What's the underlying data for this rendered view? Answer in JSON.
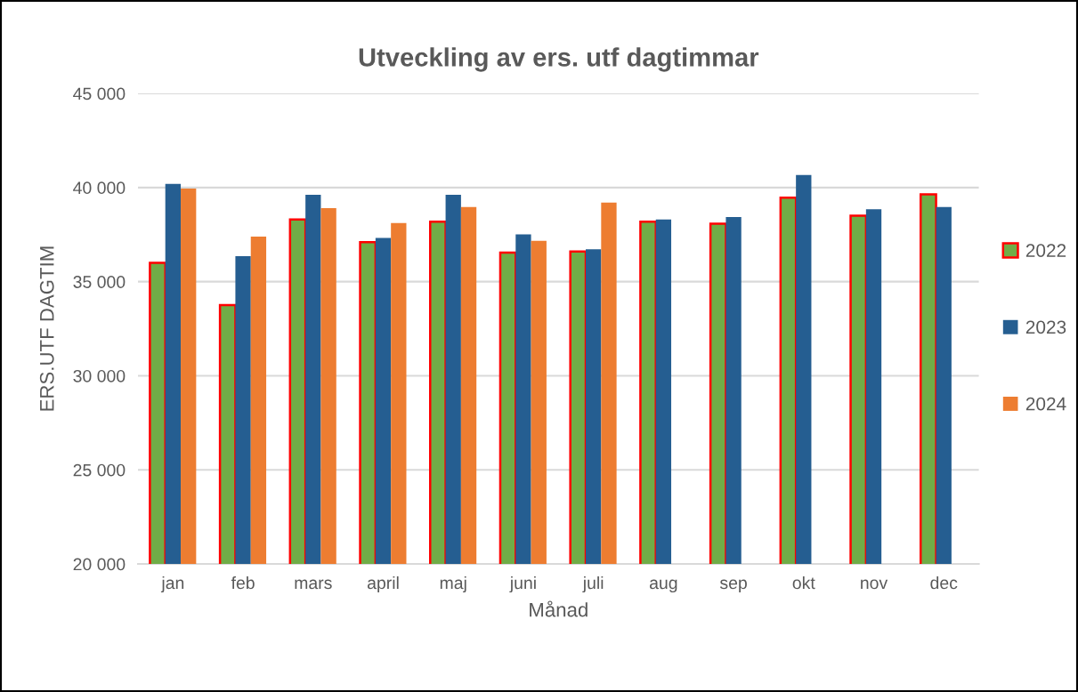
{
  "chart_data": {
    "type": "bar",
    "title": "Utveckling av ers. utf dagtimmar",
    "xlabel": "Månad",
    "ylabel": "ERS.UTF DAGTIM",
    "categories": [
      "jan",
      "feb",
      "mars",
      "april",
      "maj",
      "juni",
      "juli",
      "aug",
      "sep",
      "okt",
      "nov",
      "dec"
    ],
    "series": [
      {
        "name": "2022",
        "color": "#70ad47",
        "values": [
          36000,
          33760,
          38300,
          37100,
          38190,
          36540,
          36600,
          38190,
          38080,
          39460,
          38500,
          39640
        ]
      },
      {
        "name": "2023",
        "color": "#255e91",
        "values": [
          40190,
          36350,
          39620,
          37320,
          39620,
          37510,
          36720,
          38300,
          38430,
          40660,
          38850,
          38960
        ]
      },
      {
        "name": "2024",
        "color": "#ed7d31",
        "values": [
          39940,
          37390,
          38910,
          38110,
          38960,
          37170,
          39200,
          null,
          null,
          null,
          null,
          null
        ]
      }
    ],
    "ylim": [
      20000,
      45000
    ],
    "yticks": [
      {
        "value": 20000,
        "label": "20 000"
      },
      {
        "value": 25000,
        "label": "25 000"
      },
      {
        "value": 30000,
        "label": "30 000"
      },
      {
        "value": 35000,
        "label": "35 000"
      },
      {
        "value": 40000,
        "label": "40 000"
      },
      {
        "value": 45000,
        "label": "45 000"
      }
    ],
    "grid": "y",
    "legend": "right"
  }
}
